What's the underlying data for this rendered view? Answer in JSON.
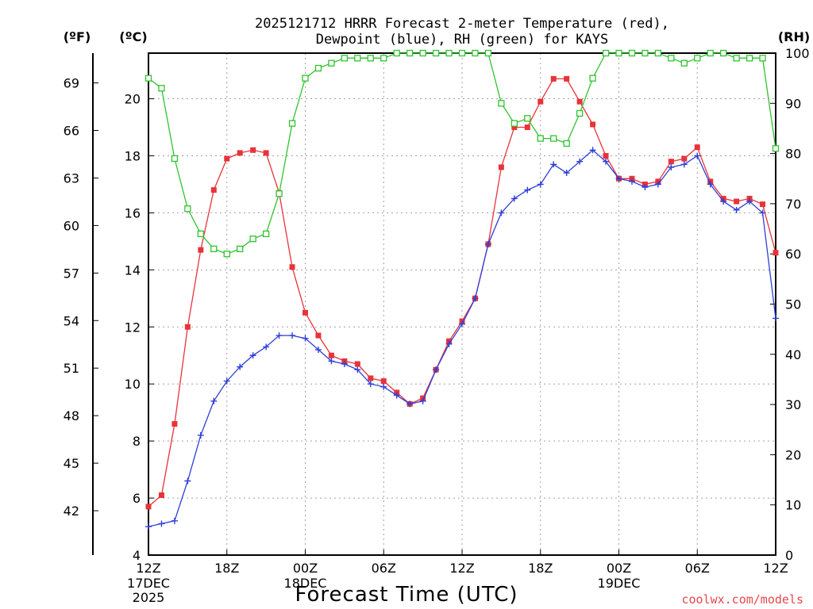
{
  "chart_data": {
    "type": "line",
    "title_lines": [
      "2025121712 HRRR Forecast 2-meter Temperature (red),",
      "Dewpoint (blue), RH (green) for KAYS"
    ],
    "xlabel": "Forecast Time (UTC)",
    "credit": "coolwx.com/models",
    "units": {
      "f": "(ºF)",
      "c": "(ºC)",
      "rh": "(RH)"
    },
    "grid": true,
    "x_ticks": [
      {
        "i": 0,
        "label": "12Z",
        "sub": [
          "17DEC",
          "2025"
        ]
      },
      {
        "i": 6,
        "label": "18Z",
        "sub": []
      },
      {
        "i": 12,
        "label": "00Z",
        "sub": [
          "18DEC"
        ]
      },
      {
        "i": 18,
        "label": "06Z",
        "sub": []
      },
      {
        "i": 24,
        "label": "12Z",
        "sub": []
      },
      {
        "i": 30,
        "label": "18Z",
        "sub": []
      },
      {
        "i": 36,
        "label": "00Z",
        "sub": [
          "19DEC"
        ]
      },
      {
        "i": 42,
        "label": "06Z",
        "sub": []
      },
      {
        "i": 48,
        "label": "12Z",
        "sub": []
      }
    ],
    "x_range_hours": [
      0,
      48
    ],
    "celsius_axis": {
      "range": [
        4,
        21.6
      ],
      "ticks": [
        4,
        6,
        8,
        10,
        12,
        14,
        16,
        18,
        20
      ]
    },
    "fahrenheit_axis": {
      "ticks": [
        42,
        45,
        48,
        51,
        54,
        57,
        60,
        63,
        66,
        69
      ]
    },
    "rh_axis": {
      "range": [
        0,
        100
      ],
      "ticks": [
        0,
        10,
        20,
        30,
        40,
        50,
        60,
        70,
        80,
        90,
        100
      ]
    },
    "series": [
      {
        "name": "Temperature",
        "unit": "C",
        "color": "#e8333a",
        "marker": "filled-square",
        "values": [
          5.7,
          6.1,
          8.6,
          12.0,
          14.7,
          16.8,
          17.9,
          18.1,
          18.2,
          18.1,
          16.7,
          14.1,
          12.5,
          11.7,
          11.0,
          10.8,
          10.7,
          10.2,
          10.1,
          9.7,
          9.3,
          9.5,
          10.5,
          11.5,
          12.2,
          13.0,
          14.9,
          17.6,
          19.0,
          19.0,
          19.9,
          20.7,
          20.7,
          19.9,
          19.1,
          18.0,
          17.2,
          17.2,
          17.0,
          17.1,
          17.8,
          17.9,
          18.3,
          17.1,
          16.5,
          16.4,
          16.5,
          16.3,
          14.6
        ]
      },
      {
        "name": "Dewpoint",
        "unit": "C",
        "color": "#2f3fd6",
        "marker": "plus",
        "values": [
          5.0,
          5.1,
          5.2,
          6.6,
          8.2,
          9.4,
          10.1,
          10.6,
          11.0,
          11.3,
          11.7,
          11.7,
          11.6,
          11.2,
          10.8,
          10.7,
          10.5,
          10.0,
          9.9,
          9.6,
          9.3,
          9.4,
          10.5,
          11.4,
          12.1,
          13.0,
          14.9,
          16.0,
          16.5,
          16.8,
          17.0,
          17.7,
          17.4,
          17.8,
          18.2,
          17.8,
          17.2,
          17.1,
          16.9,
          17.0,
          17.6,
          17.7,
          18.0,
          17.0,
          16.4,
          16.1,
          16.4,
          16.0,
          12.3
        ]
      },
      {
        "name": "RH",
        "unit": "%",
        "color": "#2ec42e",
        "marker": "open-square",
        "values": [
          95,
          93,
          79,
          69,
          64,
          61,
          60,
          61,
          63,
          64,
          72,
          86,
          95,
          97,
          98,
          99,
          99,
          99,
          99,
          100,
          100,
          100,
          100,
          100,
          100,
          100,
          100,
          90,
          86,
          87,
          83,
          83,
          82,
          88,
          95,
          100,
          100,
          100,
          100,
          100,
          99,
          98,
          99,
          100,
          100,
          99,
          99,
          99,
          81
        ]
      }
    ]
  }
}
